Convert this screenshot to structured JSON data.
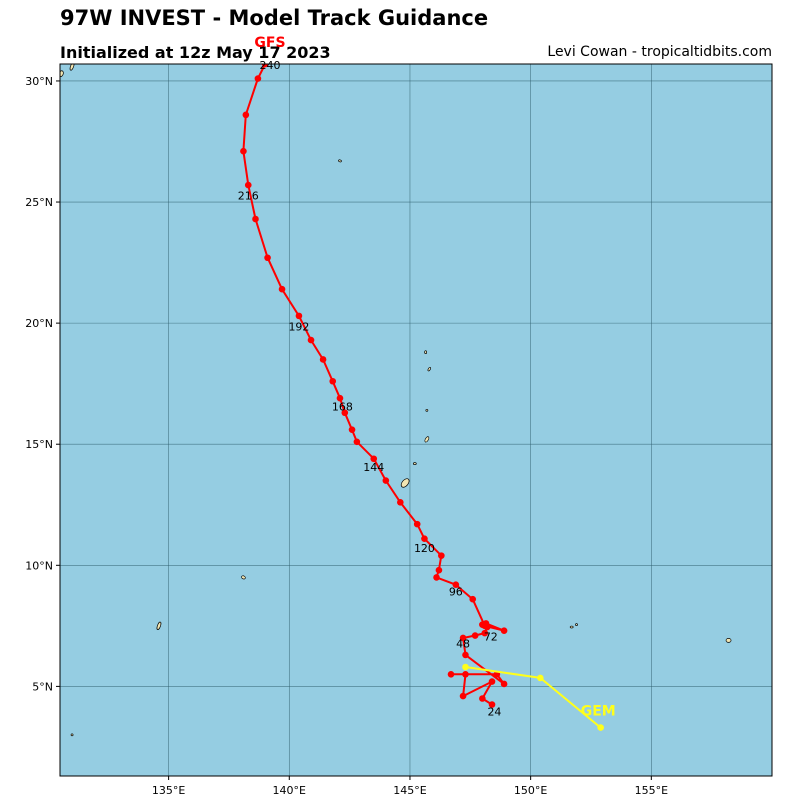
{
  "header": {
    "title": "97W INVEST - Model Track Guidance",
    "subtitle": "Initialized at 12z May 17 2023",
    "credit": "Levi Cowan - tropicaltidbits.com"
  },
  "colors": {
    "ocean": "#95cde2",
    "land": "#f2e6b3",
    "grid": "#2f5f6e",
    "gfs_track": "#ff0000",
    "gem_track": "#ffff1a"
  },
  "chart_data": {
    "type": "map-track",
    "xlim": [
      130.5,
      160
    ],
    "ylim": [
      1.3,
      30.7
    ],
    "x_ticks": [
      135,
      140,
      145,
      150,
      155
    ],
    "x_tick_labels": [
      "135°E",
      "140°E",
      "145°E",
      "150°E",
      "155°E"
    ],
    "y_ticks": [
      5,
      10,
      15,
      20,
      25,
      30
    ],
    "y_tick_labels": [
      "5°N",
      "10°N",
      "15°N",
      "20°N",
      "25°N",
      "30°N"
    ],
    "grid": true,
    "series": [
      {
        "name": "GFS",
        "color": "#ff0000",
        "label_position": "end",
        "points": [
          [
            148.4,
            4.25
          ],
          [
            148.0,
            4.5
          ],
          [
            148.4,
            5.2
          ],
          [
            147.2,
            4.6
          ],
          [
            147.3,
            5.5
          ],
          [
            146.7,
            5.5
          ],
          [
            148.6,
            5.5
          ],
          [
            148.9,
            5.1
          ],
          [
            147.3,
            6.3
          ],
          [
            147.2,
            7.0
          ],
          [
            147.7,
            7.1
          ],
          [
            148.1,
            7.2
          ],
          [
            148.2,
            7.45
          ],
          [
            148.0,
            7.55
          ],
          [
            148.15,
            7.6
          ],
          [
            148.9,
            7.3
          ],
          [
            148.1,
            7.5
          ],
          [
            147.6,
            8.6
          ],
          [
            146.9,
            9.2
          ],
          [
            146.1,
            9.5
          ],
          [
            146.2,
            9.8
          ],
          [
            146.3,
            10.4
          ],
          [
            145.6,
            11.1
          ],
          [
            145.3,
            11.7
          ],
          [
            144.6,
            12.6
          ],
          [
            144.0,
            13.5
          ],
          [
            143.5,
            14.4
          ],
          [
            142.8,
            15.1
          ],
          [
            142.6,
            15.6
          ],
          [
            142.3,
            16.3
          ],
          [
            142.1,
            16.9
          ],
          [
            141.8,
            17.6
          ],
          [
            141.4,
            18.5
          ],
          [
            140.9,
            19.3
          ],
          [
            140.4,
            20.3
          ],
          [
            139.7,
            21.4
          ],
          [
            139.1,
            22.7
          ],
          [
            138.6,
            24.3
          ],
          [
            138.3,
            25.7
          ],
          [
            138.1,
            27.1
          ],
          [
            138.2,
            28.6
          ],
          [
            138.7,
            30.1
          ],
          [
            139.0,
            30.7
          ]
        ],
        "labels": [
          {
            "text": "24",
            "lon": 148.5,
            "lat": 3.8
          },
          {
            "text": "48",
            "lon": 147.2,
            "lat": 6.6
          },
          {
            "text": "72",
            "lon": 148.35,
            "lat": 6.9
          },
          {
            "text": "96",
            "lon": 146.9,
            "lat": 8.75
          },
          {
            "text": "120",
            "lon": 145.6,
            "lat": 10.55
          },
          {
            "text": "144",
            "lon": 143.5,
            "lat": 13.9
          },
          {
            "text": "168",
            "lon": 142.2,
            "lat": 16.4
          },
          {
            "text": "192",
            "lon": 140.4,
            "lat": 19.7
          },
          {
            "text": "216",
            "lon": 138.3,
            "lat": 25.1
          },
          {
            "text": "240",
            "lon": 139.2,
            "lat": 30.5
          }
        ],
        "end_label": {
          "text": "GFS",
          "lon": 139.2,
          "lat": 31.4
        }
      },
      {
        "name": "GEM",
        "color": "#ffff1a",
        "label_position": "end",
        "points": [
          [
            147.3,
            5.8
          ],
          [
            150.4,
            5.35
          ],
          [
            152.9,
            3.3
          ]
        ],
        "labels": [],
        "end_label": {
          "text": "GEM",
          "lon": 152.8,
          "lat": 3.8
        }
      }
    ]
  },
  "islands": [
    {
      "name": "guam",
      "lon": 144.8,
      "lat": 13.4,
      "rx": 3,
      "ry": 5,
      "rot": 40
    },
    {
      "name": "saipan",
      "lon": 145.7,
      "lat": 15.2,
      "rx": 1.5,
      "ry": 3,
      "rot": 30
    },
    {
      "name": "tinian",
      "lon": 145.2,
      "lat": 14.2,
      "rx": 1.5,
      "ry": 1,
      "rot": 0
    },
    {
      "name": "anatahan",
      "lon": 145.7,
      "lat": 16.4,
      "rx": 1,
      "ry": 1,
      "rot": 0
    },
    {
      "name": "pagan",
      "lon": 145.8,
      "lat": 18.1,
      "rx": 1,
      "ry": 2,
      "rot": 30
    },
    {
      "name": "agrihan",
      "lon": 145.65,
      "lat": 18.8,
      "rx": 1,
      "ry": 1.5,
      "rot": 0
    },
    {
      "name": "iwo-jima",
      "lon": 142.1,
      "lat": 26.7,
      "rx": 1.5,
      "ry": 1,
      "rot": 20
    },
    {
      "name": "palau",
      "lon": 134.6,
      "lat": 7.5,
      "rx": 1.5,
      "ry": 4,
      "rot": 20
    },
    {
      "name": "yap",
      "lon": 138.1,
      "lat": 9.5,
      "rx": 2,
      "ry": 1.5,
      "rot": 30
    },
    {
      "name": "chuuk",
      "lon": 151.7,
      "lat": 7.45,
      "rx": 1.5,
      "ry": 1,
      "rot": 0
    },
    {
      "name": "chuuk-b",
      "lon": 151.9,
      "lat": 7.55,
      "rx": 1,
      "ry": 1,
      "rot": 0
    },
    {
      "name": "pohnpei",
      "lon": 158.2,
      "lat": 6.9,
      "rx": 2.5,
      "ry": 2,
      "rot": 0
    },
    {
      "name": "okinotori",
      "lon": 131.0,
      "lat": 3.0,
      "rx": 1,
      "ry": 1,
      "rot": 0
    },
    {
      "name": "daito-a",
      "lon": 130.55,
      "lat": 30.3,
      "rx": 2,
      "ry": 3,
      "rot": 20
    },
    {
      "name": "daito-b",
      "lon": 131.0,
      "lat": 30.6,
      "rx": 1.5,
      "ry": 4,
      "rot": 20
    }
  ]
}
